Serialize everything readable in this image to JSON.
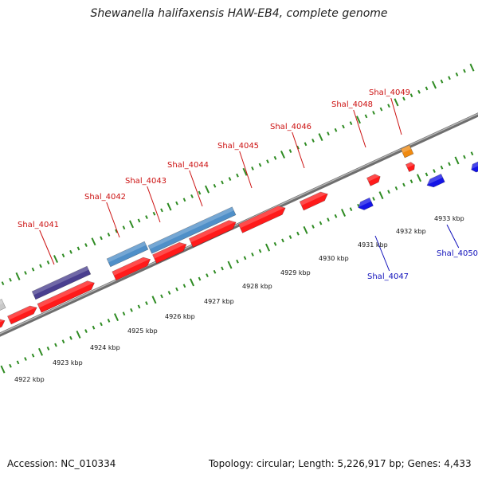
{
  "title": "Shewanella halifaxensis HAW-EB4, complete genome",
  "footer": {
    "accession": "Accession: NC_010334",
    "topology": "Topology: circular; Length: 5,226,917 bp; Genes: 4,433"
  },
  "colors": {
    "backbone": "#8c8c8c",
    "dotted_track": "#2e8b22",
    "forward_cds": "#ff1a1a",
    "reverse_cds": "#1414e6",
    "rna": "#4f8fc8",
    "other": "#4a3f8f",
    "misc": "#f08a10",
    "label_red": "#cc1111",
    "label_blue": "#1111bb"
  },
  "kbp_ticks": [
    "4922 kbp",
    "4923 kbp",
    "4924 kbp",
    "4925 kbp",
    "4926 kbp",
    "4927 kbp",
    "4928 kbp",
    "4929 kbp",
    "4930 kbp",
    "4931 kbp",
    "4932 kbp",
    "4933 kbp"
  ],
  "gene_labels_forward": [
    "Shal_4041",
    "Shal_4042",
    "Shal_4043",
    "Shal_4044",
    "Shal_4045",
    "Shal_4046",
    "Shal_4048",
    "Shal_4049"
  ],
  "gene_labels_reverse": [
    "Shal_4047",
    "Shal_4050"
  ]
}
